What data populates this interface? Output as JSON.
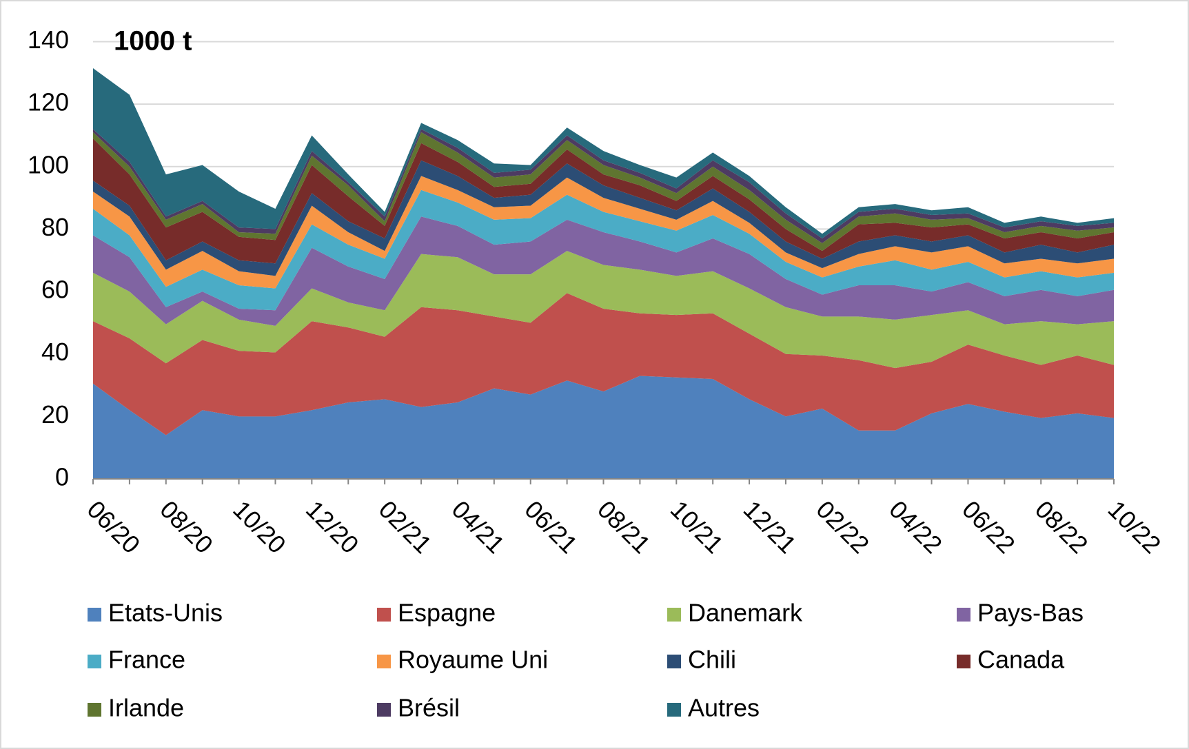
{
  "chart_data": {
    "type": "stacked_area",
    "unit_label": "1000 t",
    "categories": [
      "06/20",
      null,
      "08/20",
      null,
      "10/20",
      null,
      "12/20",
      null,
      "02/21",
      null,
      "04/21",
      null,
      "06/21",
      null,
      "08/21",
      null,
      "10/21",
      null,
      "12/21",
      null,
      "02/22",
      null,
      "04/22",
      null,
      "06/22",
      null,
      "08/22",
      null,
      "10/22"
    ],
    "ylim": [
      0,
      140
    ],
    "yticks": [
      0,
      20,
      40,
      60,
      80,
      100,
      120,
      140
    ],
    "grid": true,
    "legend": "bottom",
    "series": [
      {
        "name": "Etats-Unis",
        "color": "#4f81bd",
        "values": [
          30.5,
          22,
          14,
          22,
          20,
          20,
          22,
          24.5,
          25.5,
          23,
          24.5,
          29,
          27,
          31.5,
          28,
          33,
          32.5,
          32,
          25.5,
          20,
          22.5,
          15.5,
          15.5,
          21,
          24,
          21.5,
          19.5,
          21,
          19.5
        ]
      },
      {
        "name": "Espagne",
        "color": "#c0504d",
        "values": [
          20,
          23,
          23,
          22.5,
          21,
          20.5,
          28.5,
          24,
          20,
          32,
          29.5,
          23,
          23,
          28,
          26.5,
          20,
          20,
          21,
          21,
          20,
          17,
          22.5,
          20,
          16.5,
          19,
          18,
          17,
          18.5,
          17
        ]
      },
      {
        "name": "Danemark",
        "color": "#9bbb59",
        "values": [
          15.5,
          15,
          12.5,
          12.5,
          10,
          8.5,
          10.5,
          8,
          8.5,
          17,
          17,
          13.5,
          15.5,
          13.5,
          14,
          14,
          12.5,
          13.5,
          14.5,
          15,
          12.5,
          14,
          15.5,
          15,
          11,
          10,
          14,
          10,
          14
        ]
      },
      {
        "name": "Pays-Bas",
        "color": "#8064a2",
        "values": [
          12,
          11,
          5.5,
          3,
          3.5,
          5,
          13,
          11.5,
          10,
          12,
          10,
          9.5,
          10.5,
          10,
          10.5,
          9,
          7.5,
          10.5,
          11,
          9,
          7,
          10,
          11,
          7.5,
          9,
          9,
          10,
          9,
          10
        ]
      },
      {
        "name": "France",
        "color": "#4bacc6",
        "values": [
          8.5,
          7,
          6.5,
          7,
          7.5,
          7,
          7.5,
          7,
          6.5,
          8.5,
          7.5,
          8,
          7.5,
          8,
          6.5,
          6.5,
          7,
          7.5,
          6.5,
          5.5,
          5.5,
          6,
          8,
          7,
          6.5,
          6,
          6,
          6,
          5.5
        ]
      },
      {
        "name": "Royaume Uni",
        "color": "#f79646",
        "values": [
          5.5,
          6,
          5.5,
          6,
          4.5,
          4,
          6,
          4,
          2.5,
          4.5,
          4,
          4,
          4,
          5.5,
          4.5,
          4,
          3.5,
          4.5,
          3.5,
          3,
          3,
          4,
          4.5,
          5.5,
          5,
          4.5,
          4,
          4.5,
          4.5
        ]
      },
      {
        "name": "Chili",
        "color": "#2c4d75",
        "values": [
          3.5,
          3.5,
          3,
          3,
          3.5,
          4,
          4,
          3.5,
          4,
          5,
          4.5,
          3,
          3.5,
          4.5,
          4,
          3.5,
          3,
          4,
          3.5,
          3.5,
          3,
          4,
          3.5,
          3.5,
          3.5,
          3.5,
          4.5,
          3.5,
          4.5
        ]
      },
      {
        "name": "Canada",
        "color": "#772c2a",
        "values": [
          13.5,
          10,
          10.5,
          9.5,
          7.5,
          7.5,
          9,
          8,
          4,
          5.5,
          4.5,
          3.5,
          3.5,
          4.5,
          3.5,
          4,
          3,
          4,
          4,
          4,
          2.5,
          5.5,
          4,
          4.5,
          3.5,
          4.5,
          4,
          4.5,
          4
        ]
      },
      {
        "name": "Irlande",
        "color": "#5f7530",
        "values": [
          2,
          2.5,
          2.5,
          2.5,
          1.5,
          2,
          3,
          3.5,
          1.5,
          3.5,
          3,
          3,
          3,
          3,
          3,
          2.5,
          2.5,
          3,
          3,
          3,
          2.5,
          2.5,
          3,
          2.5,
          2,
          2,
          2,
          2.5,
          1.5
        ]
      },
      {
        "name": "Brésil",
        "color": "#4d3b62",
        "values": [
          1,
          1.5,
          1,
          1,
          1.5,
          1.5,
          1.5,
          1,
          1.5,
          1,
          1.5,
          1.5,
          1.5,
          1.5,
          1.5,
          1.5,
          1.5,
          2,
          2.5,
          2,
          1.5,
          1.5,
          1.5,
          1.5,
          1.5,
          1.5,
          1.5,
          1.5,
          1.5
        ]
      },
      {
        "name": "Autres",
        "color": "#276a7c",
        "values": [
          19.5,
          21.5,
          13.5,
          11.5,
          11.5,
          6.5,
          5,
          2.5,
          1.5,
          2,
          2.5,
          3,
          1.5,
          2.5,
          3,
          2.5,
          3.5,
          2.5,
          2,
          2,
          1.5,
          1.5,
          1.5,
          1.5,
          2,
          1.5,
          1.5,
          1,
          1.5
        ]
      }
    ]
  }
}
